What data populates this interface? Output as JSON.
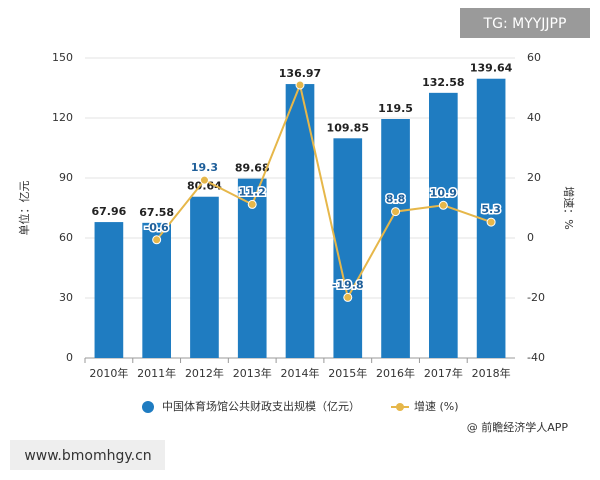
{
  "chart_data": {
    "type": "bar-line",
    "categories": [
      "2010年",
      "2011年",
      "2012年",
      "2013年",
      "2014年",
      "2015年",
      "2016年",
      "2017年",
      "2018年"
    ],
    "series": [
      {
        "name": "中国体育场馆公共财政支出规模（亿元）",
        "color": "#1f7cc1",
        "type": "bar",
        "values": [
          67.96,
          67.58,
          80.64,
          89.68,
          136.97,
          109.85,
          119.5,
          132.58,
          139.64
        ]
      },
      {
        "name": "增速 (%)",
        "color": "#e6b74a",
        "type": "line",
        "axis": "y2",
        "values": [
          null,
          -0.6,
          19.3,
          11.2,
          51,
          -19.8,
          8.8,
          10.9,
          5.3
        ],
        "value_labels": [
          null,
          "-0.6",
          "19.3",
          "11.2",
          null,
          "-19.8",
          "8.8",
          "10.9",
          "5.3"
        ]
      }
    ],
    "ylabel": "单位：亿元",
    "y2label": "增速：%",
    "ylim": [
      0,
      150
    ],
    "yticks": [
      0,
      30,
      60,
      90,
      120,
      150
    ],
    "y2lim": [
      -40,
      60
    ],
    "y2ticks": [
      -40,
      -20,
      0,
      20,
      40,
      60
    ],
    "grid": true
  },
  "watermark_tag": "TG: MYYJJPP",
  "source": "@ 前瞻经济学人APP",
  "website": "www.bmomhgy.cn"
}
